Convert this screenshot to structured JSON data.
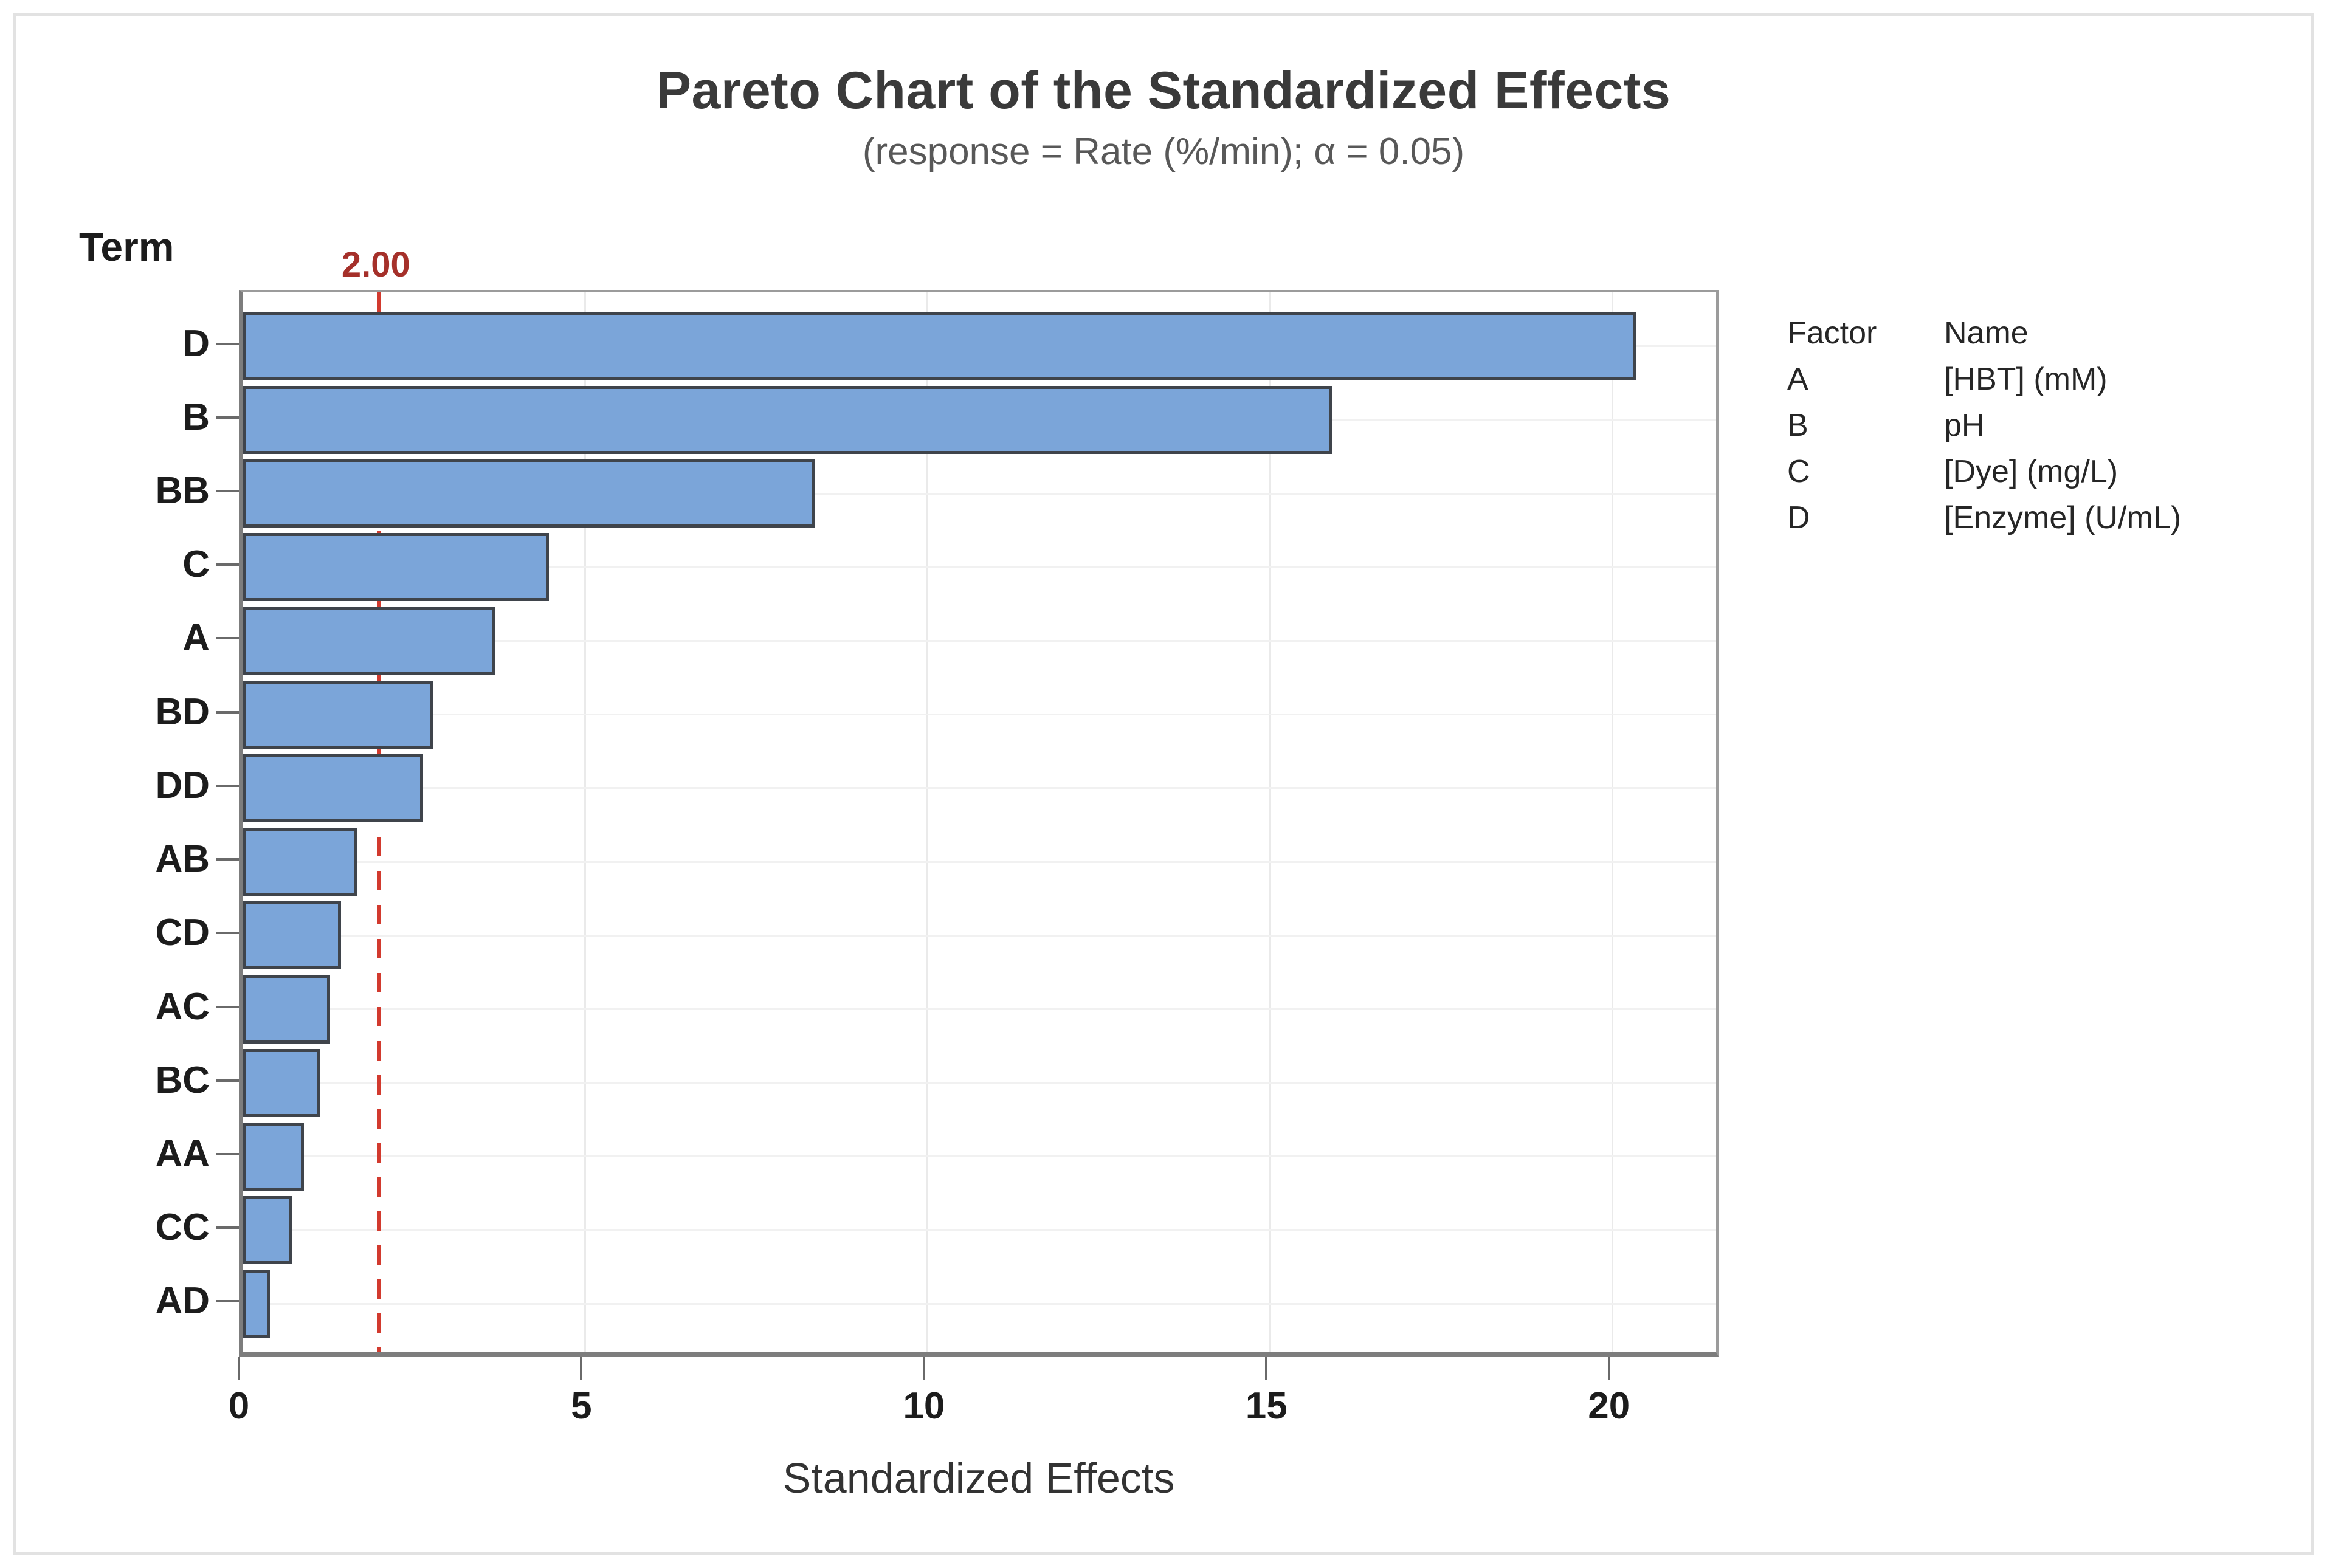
{
  "chart_data": {
    "type": "bar",
    "orientation": "horizontal",
    "title": "Pareto Chart of the Standardized Effects",
    "subtitle": "(response = Rate (%/min); α = 0.05)",
    "ylabel": "Term",
    "xlabel": "Standardized Effects",
    "categories": [
      "D",
      "B",
      "BB",
      "C",
      "A",
      "BD",
      "DD",
      "AB",
      "CD",
      "AC",
      "BC",
      "AA",
      "CC",
      "AD"
    ],
    "values": [
      20.35,
      15.9,
      8.35,
      4.47,
      3.69,
      2.78,
      2.64,
      1.68,
      1.44,
      1.28,
      1.13,
      0.9,
      0.72,
      0.4
    ],
    "x_ticks": [
      "0",
      "5",
      "10",
      "15",
      "20"
    ],
    "x_tick_values": [
      0,
      5,
      10,
      15,
      20
    ],
    "xlim": [
      0,
      21.6
    ],
    "grid": true,
    "legend_position": "right",
    "reference_line": {
      "value": 2,
      "label": "2.00"
    },
    "colors": {
      "bar_fill": "#7ba5d9",
      "bar_border": "#3f444b",
      "reference_line": "#d23a2e",
      "reference_label": "#a5302a",
      "axis": "#7d7d7d",
      "gridline": "#eaeaea"
    }
  },
  "legend": {
    "header": {
      "factor": "Factor",
      "name": "Name"
    },
    "rows": [
      {
        "factor": "A",
        "name": "[HBT] (mM)"
      },
      {
        "factor": "B",
        "name": "pH"
      },
      {
        "factor": "C",
        "name": "[Dye] (mg/L)"
      },
      {
        "factor": "D",
        "name": "[Enzyme] (U/mL)"
      }
    ]
  }
}
